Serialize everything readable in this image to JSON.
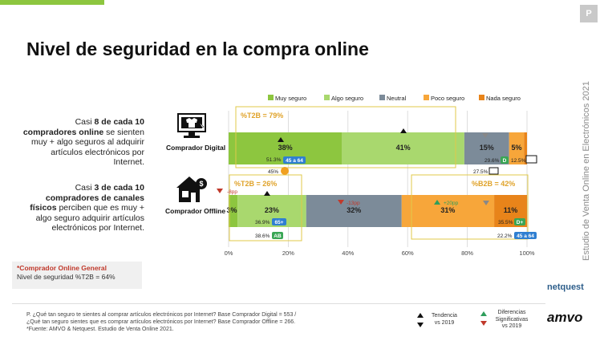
{
  "header": {
    "badge": "P",
    "title": "Nivel de seguridad en la compra online"
  },
  "side_title": "Estudio de Venta Online en Electrónicos 2021",
  "left_texts": {
    "digital": [
      "Casi ",
      "8 de cada 10 compradores online",
      " se sienten muy + algo seguros al adquirir artículos electrónicos por Internet."
    ],
    "offline": [
      "Casi ",
      "3 de cada 10 compradores de canales físicos",
      " perciben que es muy + algo seguro adquirir artículos electrónicos por Internet."
    ]
  },
  "icons": {
    "digital_label": "Comprador Digital",
    "offline_label": "Comprador Offline"
  },
  "general_box": {
    "line1": "*Comprador Online General",
    "line2": "Nivel de seguridad %T2B = 64%"
  },
  "footnote": {
    "line1": "P. ¿Qué tan seguro te sientes al comprar artículos electrónicos por Internet? Base Comprador Digital = 553 /",
    "line2": "¿Qué tan seguro sientes que es comprar artículos electrónicos por Internet? Base Comprador Offline = 266.",
    "line3": "*Fuente: AMVO & Netquest. Estudio de Venta Online 2021."
  },
  "legend_small": {
    "tendencia": "Tendencia\nvs 2019",
    "diferencias": "Diferencias\nSignificativas\nvs 2019"
  },
  "logos": {
    "netquest": "netquest",
    "amvo": "amvo"
  },
  "colors": {
    "muy": "#8dc63f",
    "algo": "#a9d86e",
    "neutral": "#7c8b99",
    "poco": "#f7a63a",
    "nada": "#e8841a",
    "accent": "#8dc63f"
  },
  "chart_data": {
    "type": "bar",
    "orientation": "horizontal-stacked",
    "legend": [
      "Muy seguro",
      "Algo seguro",
      "Neutral",
      "Poco seguro",
      "Nada seguro"
    ],
    "legend_position": "top",
    "categories": [
      "Comprador Digital",
      "Comprador Offline"
    ],
    "xlim": [
      0,
      100
    ],
    "xticks": [
      "0%",
      "20%",
      "40%",
      "60%",
      "80%",
      "100%"
    ],
    "series": [
      {
        "name": "Muy seguro",
        "values": [
          38,
          3
        ]
      },
      {
        "name": "Algo seguro",
        "values": [
          41,
          23
        ]
      },
      {
        "name": "Neutral",
        "values": [
          15,
          32
        ]
      },
      {
        "name": "Poco seguro",
        "values": [
          5,
          31
        ]
      },
      {
        "name": "Nada seguro",
        "values": [
          1,
          11
        ]
      }
    ],
    "segment_labels": {
      "Comprador Digital": [
        "38%",
        "41%",
        "15%",
        "5%",
        ""
      ],
      "Comprador Offline": [
        "3%",
        "23%",
        "32%",
        "31%",
        "11%"
      ]
    },
    "annotations": {
      "digital_t2b": "%T2B = 79%",
      "offline_t2b": "%T2B = 26%",
      "offline_b2b": "%B2B = 42%",
      "digital_sub": [
        "51.3%",
        "45 a 64",
        "29.6%",
        "D",
        "12.5%",
        "27.5%",
        "45%"
      ],
      "offline_sub": [
        "36.9%",
        "65+",
        "38.6%",
        "AB",
        "35.5%",
        "D+",
        "22.2%",
        "45 a 64"
      ],
      "offline_changes": [
        "-8pp",
        "-13pp",
        "+20pp"
      ]
    }
  }
}
